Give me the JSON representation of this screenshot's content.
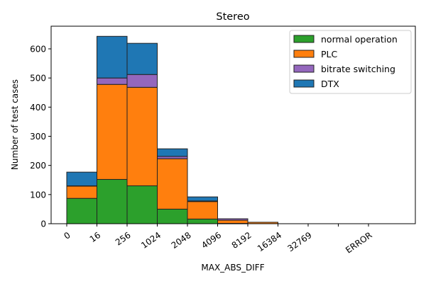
{
  "chart_data": {
    "type": "bar",
    "stacked": true,
    "title": "Stereo",
    "xlabel": "MAX_ABS_DIFF",
    "ylabel": "Number of test cases",
    "ylim": [
      0,
      680
    ],
    "yticks": [
      0,
      100,
      200,
      300,
      400,
      500,
      600
    ],
    "xtick_labels": [
      "0",
      "16",
      "256",
      "1024",
      "2048",
      "4096",
      "8192",
      "16384",
      "32769",
      "",
      "ERROR"
    ],
    "bins": [
      "0-16",
      "16-256",
      "256-1024",
      "1024-2048",
      "2048-4096",
      "4096-8192",
      "8192-16384",
      "16384-32769",
      "32769-",
      "-ERROR"
    ],
    "series": [
      {
        "name": "normal operation",
        "color": "#2ca02c",
        "values": [
          87,
          152,
          130,
          50,
          16,
          1,
          0,
          0,
          0,
          0
        ]
      },
      {
        "name": "PLC",
        "color": "#ff7f0e",
        "values": [
          42,
          326,
          338,
          173,
          60,
          11,
          5,
          0,
          0,
          0
        ]
      },
      {
        "name": "bitrate switching",
        "color": "#9467bd",
        "values": [
          1,
          22,
          44,
          8,
          2,
          5,
          0,
          0,
          0,
          0
        ]
      },
      {
        "name": "DTX",
        "color": "#1f77b4",
        "values": [
          47,
          143,
          107,
          26,
          14,
          0,
          0,
          0,
          0,
          0
        ]
      }
    ],
    "legend_position": "top-right",
    "grid": false
  }
}
